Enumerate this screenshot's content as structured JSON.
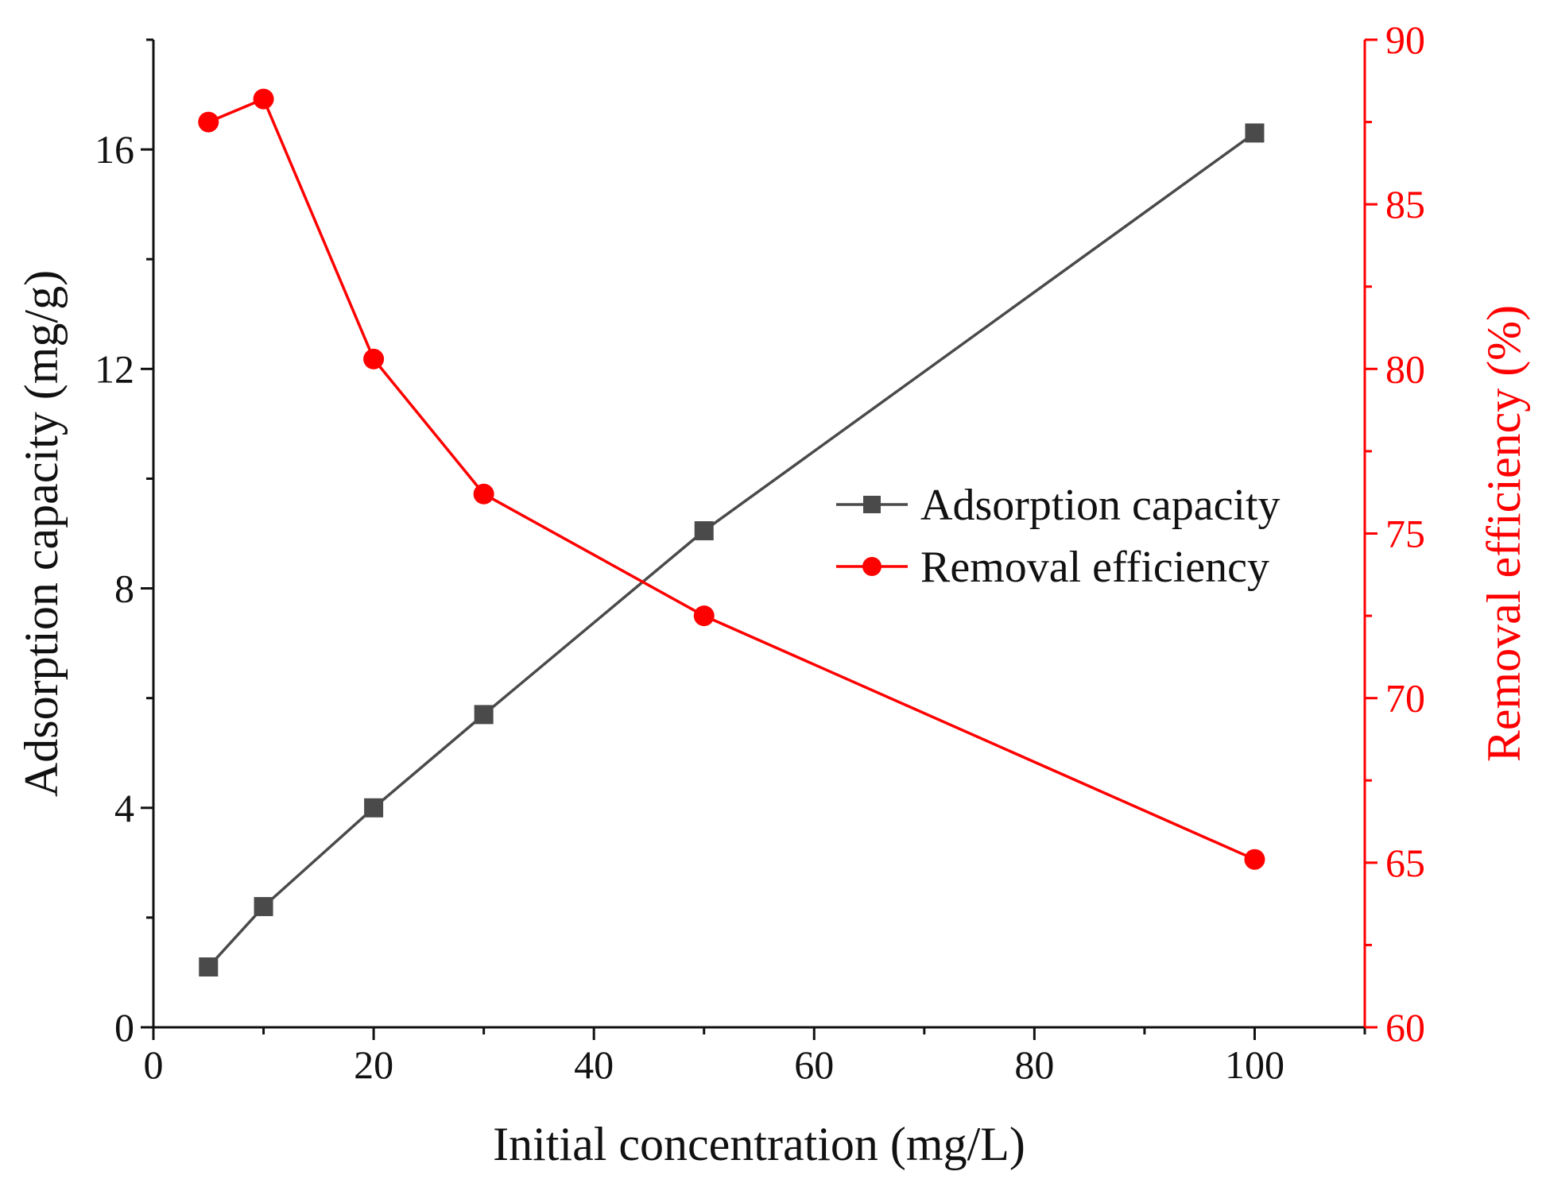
{
  "chart_data": {
    "type": "line",
    "xlabel": "Initial concentration (mg/L)",
    "ylabel": "Adsorption capacity (mg/g)",
    "y2label": "Removal efficiency (%)",
    "xlim": [
      0,
      110
    ],
    "ylim": [
      0,
      18
    ],
    "y2lim": [
      60,
      90
    ],
    "xticks": [
      0,
      20,
      40,
      60,
      80,
      100
    ],
    "yticks": [
      0,
      4,
      8,
      12,
      16
    ],
    "y2ticks": [
      60,
      65,
      70,
      75,
      80,
      85,
      90
    ],
    "grid": false,
    "legend_position": "center-right",
    "series": [
      {
        "name": "Adsorption capacity",
        "axis": "left",
        "color": "#4a4a4a",
        "marker": "square",
        "x": [
          5,
          10,
          20,
          30,
          50,
          100
        ],
        "values": [
          1.1,
          2.2,
          4.0,
          5.7,
          9.05,
          16.3
        ]
      },
      {
        "name": "Removal efficiency",
        "axis": "right",
        "color": "#ff0000",
        "marker": "circle",
        "x": [
          5,
          10,
          20,
          30,
          50,
          100
        ],
        "values": [
          87.5,
          88.2,
          80.3,
          76.2,
          72.5,
          65.1
        ]
      }
    ]
  }
}
